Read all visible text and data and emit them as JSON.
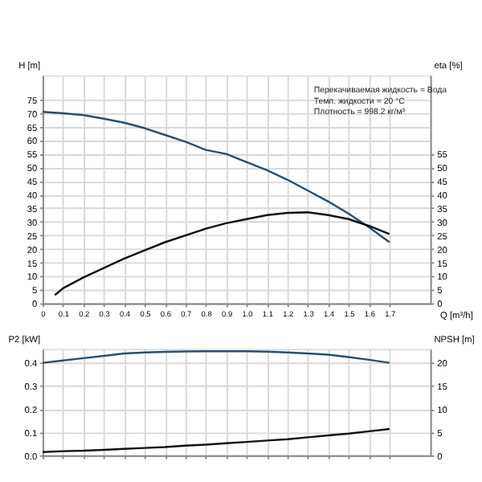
{
  "chart_data": [
    {
      "type": "line",
      "xlabel": "Q [m³/h]",
      "ylabel": "H [m]",
      "y2label": "eta [%]",
      "annotations": [
        "Перекачиваемая жидкость = Вода",
        "Темп. жидкости = 20 °C",
        "Плотность = 998.2 кг/м³"
      ],
      "xlim": [
        0,
        1.9
      ],
      "xticks": [
        0,
        0.1,
        0.2,
        0.3,
        0.4,
        0.5,
        0.6,
        0.7,
        0.8,
        0.9,
        {
          "value": 1,
          "label": "1.0"
        },
        1.1,
        1.2,
        1.3,
        1.4,
        1.5,
        1.6,
        1.7
      ],
      "ylim": [
        0,
        84
      ],
      "yticks": [
        0,
        5,
        10,
        15,
        20,
        25,
        30,
        35,
        40,
        45,
        50,
        55,
        60,
        65,
        70,
        75
      ],
      "y2lim": [
        0,
        84
      ],
      "y2ticks": [
        0,
        5,
        10,
        15,
        20,
        25,
        30,
        35,
        40,
        45,
        50,
        55
      ],
      "grid": true,
      "legend": false,
      "marker": "none",
      "series": [
        {
          "color": "#2b4f6b",
          "x": [
            0,
            0.1,
            0.2,
            0.3,
            0.4,
            0.5,
            0.6,
            0.7,
            0.8,
            0.9,
            1.0,
            1.1,
            1.2,
            1.3,
            1.4,
            1.5,
            1.6,
            1.7
          ],
          "values": [
            70.5,
            70,
            69.3,
            68,
            66.5,
            64.5,
            62,
            59.5,
            56.5,
            55,
            52,
            49,
            45.5,
            41.5,
            37.5,
            33,
            28,
            22.5
          ]
        },
        {
          "color": "#111111",
          "axis": "y2",
          "x": [
            0.06,
            0.1,
            0.2,
            0.3,
            0.4,
            0.5,
            0.6,
            0.7,
            0.8,
            0.9,
            1.0,
            1.1,
            1.2,
            1.3,
            1.4,
            1.5,
            1.6,
            1.7
          ],
          "values": [
            3,
            5.5,
            9.5,
            13,
            16.5,
            19.5,
            22.5,
            25,
            27.5,
            29.5,
            31,
            32.5,
            33.3,
            33.5,
            32.5,
            31,
            28.5,
            25.5
          ]
        }
      ]
    },
    {
      "type": "line",
      "ylabel": "P2 [kW]",
      "y2label": "NPSH [m]",
      "categories": [
        null,
        null,
        null,
        null,
        null,
        null,
        null,
        null,
        null,
        null,
        null,
        null,
        null,
        null,
        null,
        null,
        null,
        null
      ],
      "ylim": [
        0,
        0.46
      ],
      "yticks": [
        {
          "value": 0,
          "label": "0.0"
        },
        0.1,
        0.2,
        0.3,
        0.4
      ],
      "y2lim": [
        0,
        23
      ],
      "y2ticks": [
        0,
        5,
        10,
        15,
        20
      ],
      "tick_labels": "y",
      "grid": true,
      "legend": false,
      "marker": "none",
      "series": [
        {
          "color": "#2b4f6b",
          "values": [
            0.4,
            0.41,
            0.42,
            0.43,
            0.44,
            0.445,
            0.447,
            0.449,
            0.45,
            0.45,
            0.45,
            0.448,
            0.445,
            0.44,
            0.435,
            0.425,
            0.413,
            0.4
          ]
        },
        {
          "color": "#111111",
          "axis": "y2",
          "values": [
            0.7,
            0.9,
            1.0,
            1.2,
            1.4,
            1.6,
            1.8,
            2.1,
            2.3,
            2.6,
            2.9,
            3.2,
            3.5,
            3.9,
            4.3,
            4.7,
            5.2,
            5.7
          ]
        }
      ]
    }
  ]
}
